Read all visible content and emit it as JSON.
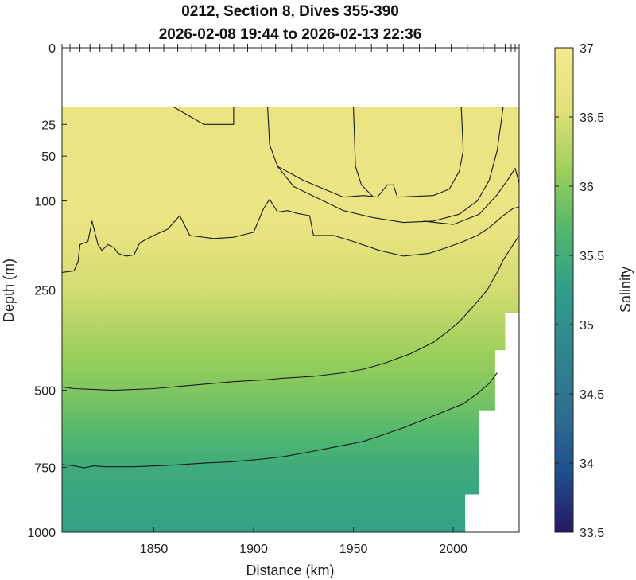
{
  "chart_data": {
    "type": "heatmap",
    "title": [
      "0212, Section 8, Dives 355-390",
      "2026-02-08 19:44 to 2026-02-13 22:36"
    ],
    "xlabel": "Distance (km)",
    "ylabel": "Depth (m)",
    "xlim": [
      1804,
      2033
    ],
    "ylim": [
      0,
      1000
    ],
    "y_scale": "sqrt",
    "xticks": [
      1850,
      1900,
      1950,
      2000
    ],
    "yticks": [
      0,
      25,
      50,
      100,
      250,
      500,
      750,
      1000
    ],
    "colorbar": {
      "label": "Salinity",
      "range": [
        33.5,
        37
      ],
      "ticks": [
        33.5,
        34,
        34.5,
        35,
        35.5,
        36,
        36.5,
        37
      ],
      "colors": [
        "#26185f",
        "#1f4f8f",
        "#2f6f8f",
        "#2f8590",
        "#2f9e8a",
        "#52b86c",
        "#9fd05a",
        "#e3e07a",
        "#f3ea8e"
      ]
    },
    "dive_positions_km": [
      1804,
      1808,
      1813,
      1818,
      1823,
      1829,
      1835,
      1841,
      1848,
      1855,
      1862,
      1869,
      1876,
      1883,
      1890,
      1897,
      1904,
      1911,
      1919,
      1927,
      1935,
      1943,
      1951,
      1959,
      1967,
      1975,
      1983,
      1991,
      1999,
      2007,
      2015,
      2021,
      2026,
      2029,
      2031,
      2033
    ],
    "data_top_depth_m": 15,
    "data_bottom_depth_m": [
      [
        1804,
        1000
      ],
      [
        2006,
        1000
      ],
      [
        2006,
        850
      ],
      [
        2013,
        850
      ],
      [
        2013,
        560
      ],
      [
        2021,
        560
      ],
      [
        2021,
        390
      ],
      [
        2026,
        390
      ],
      [
        2026,
        300
      ],
      [
        2033,
        300
      ]
    ],
    "salinity_profile": [
      {
        "depth": 15,
        "salinity": 36.75
      },
      {
        "depth": 100,
        "salinity": 36.8
      },
      {
        "depth": 150,
        "salinity": 36.7
      },
      {
        "depth": 250,
        "salinity": 36.45
      },
      {
        "depth": 400,
        "salinity": 36.1
      },
      {
        "depth": 500,
        "salinity": 35.95
      },
      {
        "depth": 650,
        "salinity": 35.65
      },
      {
        "depth": 750,
        "salinity": 35.45
      },
      {
        "depth": 1000,
        "salinity": 35.3
      }
    ],
    "contours": [
      {
        "level": 36.5,
        "points": [
          [
            1860,
            15
          ],
          [
            1875,
            25
          ],
          [
            1890,
            25
          ],
          [
            1890,
            15
          ]
        ]
      },
      {
        "level": 36.5,
        "points": [
          [
            1907,
            15
          ],
          [
            1908,
            40
          ],
          [
            1912,
            60
          ],
          [
            1925,
            75
          ],
          [
            1945,
            95
          ],
          [
            1955,
            93
          ],
          [
            1962,
            95
          ],
          [
            1967,
            80
          ],
          [
            1970,
            80
          ],
          [
            1972,
            95
          ],
          [
            1990,
            93
          ],
          [
            1998,
            85
          ],
          [
            2003,
            65
          ],
          [
            2005,
            45
          ],
          [
            2004,
            15
          ]
        ]
      },
      {
        "level": 36.5,
        "points": [
          [
            1950,
            15
          ],
          [
            1951,
            60
          ],
          [
            1954,
            80
          ],
          [
            1960,
            95
          ]
        ]
      },
      {
        "level": 36.5,
        "points": [
          [
            1912,
            60
          ],
          [
            1920,
            82
          ],
          [
            1935,
            100
          ],
          [
            1945,
            113
          ],
          [
            1960,
            123
          ],
          [
            1975,
            130
          ],
          [
            1990,
            128
          ],
          [
            2003,
            118
          ],
          [
            2012,
            100
          ],
          [
            2018,
            75
          ],
          [
            2022,
            45
          ],
          [
            2025,
            15
          ]
        ]
      },
      {
        "level": 36.5,
        "points": [
          [
            1985,
            128
          ],
          [
            2000,
            133
          ],
          [
            2013,
            118
          ],
          [
            2022,
            92
          ],
          [
            2028,
            72
          ],
          [
            2031,
            62
          ],
          [
            2033,
            78
          ]
        ]
      },
      {
        "level": 36.5,
        "points": [
          [
            1804,
            215
          ],
          [
            1810,
            212
          ],
          [
            1812,
            195
          ],
          [
            1813,
            165
          ],
          [
            1817,
            160
          ],
          [
            1819,
            128
          ],
          [
            1822,
            165
          ],
          [
            1824,
            175
          ],
          [
            1827,
            165
          ],
          [
            1830,
            170
          ],
          [
            1832,
            180
          ],
          [
            1836,
            185
          ],
          [
            1840,
            183
          ],
          [
            1843,
            162
          ],
          [
            1850,
            150
          ],
          [
            1857,
            140
          ],
          [
            1863,
            120
          ],
          [
            1868,
            150
          ],
          [
            1880,
            155
          ],
          [
            1890,
            153
          ],
          [
            1900,
            145
          ],
          [
            1905,
            110
          ],
          [
            1908,
            98
          ],
          [
            1912,
            115
          ],
          [
            1917,
            113
          ],
          [
            1922,
            117
          ],
          [
            1928,
            120
          ],
          [
            1930,
            150
          ],
          [
            1940,
            150
          ],
          [
            1950,
            160
          ],
          [
            1963,
            175
          ],
          [
            1975,
            185
          ],
          [
            1988,
            180
          ],
          [
            1997,
            170
          ],
          [
            2005,
            160
          ],
          [
            2012,
            150
          ],
          [
            2018,
            138
          ],
          [
            2025,
            120
          ],
          [
            2030,
            110
          ],
          [
            2033,
            108
          ]
        ]
      },
      {
        "level": 36.0,
        "points": [
          [
            1804,
            490
          ],
          [
            1810,
            495
          ],
          [
            1830,
            500
          ],
          [
            1850,
            495
          ],
          [
            1870,
            485
          ],
          [
            1890,
            475
          ],
          [
            1905,
            470
          ],
          [
            1915,
            465
          ],
          [
            1930,
            460
          ],
          [
            1945,
            450
          ],
          [
            1955,
            440
          ],
          [
            1965,
            425
          ],
          [
            1978,
            400
          ],
          [
            1990,
            370
          ],
          [
            1998,
            340
          ],
          [
            2003,
            320
          ],
          [
            2010,
            285
          ],
          [
            2017,
            250
          ],
          [
            2022,
            215
          ],
          [
            2025,
            192
          ],
          [
            2030,
            165
          ],
          [
            2033,
            150
          ]
        ]
      },
      {
        "level": 35.5,
        "points": [
          [
            1804,
            740
          ],
          [
            1810,
            745
          ],
          [
            1815,
            752
          ],
          [
            1820,
            745
          ],
          [
            1825,
            748
          ],
          [
            1840,
            748
          ],
          [
            1860,
            742
          ],
          [
            1875,
            735
          ],
          [
            1890,
            730
          ],
          [
            1905,
            720
          ],
          [
            1915,
            712
          ],
          [
            1925,
            700
          ],
          [
            1940,
            680
          ],
          [
            1955,
            660
          ],
          [
            1965,
            638
          ],
          [
            1975,
            615
          ],
          [
            1985,
            590
          ],
          [
            1995,
            565
          ],
          [
            2005,
            540
          ],
          [
            2012,
            510
          ],
          [
            2018,
            480
          ],
          [
            2022,
            450
          ]
        ]
      }
    ]
  }
}
